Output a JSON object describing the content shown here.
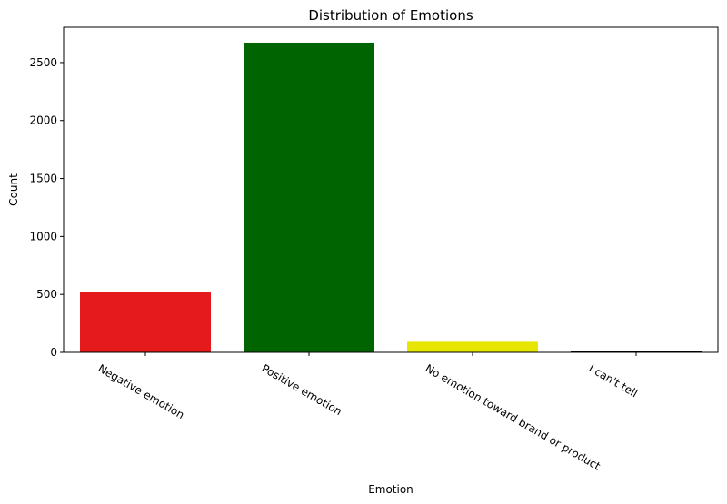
{
  "chart_data": {
    "type": "bar",
    "title": "Distribution of Emotions",
    "xlabel": "Emotion",
    "ylabel": "Count",
    "categories": [
      "Negative emotion",
      "Positive emotion",
      "No emotion toward brand or product",
      "I can't tell"
    ],
    "values": [
      519,
      2672,
      91,
      9
    ],
    "colors": [
      "#e41a1c",
      "#006400",
      "#e6e600",
      "#000000"
    ],
    "ylim": [
      0,
      2805
    ],
    "yticks": [
      0,
      500,
      1000,
      1500,
      2000,
      2500
    ],
    "grid": false
  }
}
